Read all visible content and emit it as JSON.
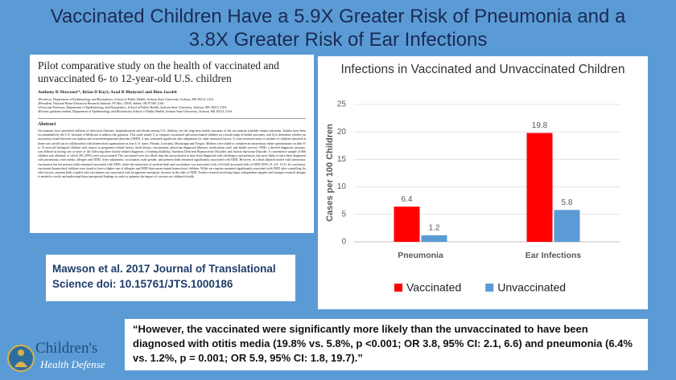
{
  "title": "Vaccinated Children Have a 5.9X Greater Risk of Pneumonia and a 3.8X Greater Risk of Ear Infections",
  "paper": {
    "title": "Pilot comparative study on the health of vaccinated and unvaccinated 6- to 12-year-old U.S. children",
    "authors": "Anthony R Mawson1*, Brian D Ray2, Azad R Bhuiyan3 and Binu Jacob4",
    "affiliations": [
      "1Professor, Department of Epidemiology and Biostatistics, School of Public Health, Jackson State University, Jackson, MS 39213, USA",
      "2President, National Home Education Research Institute, PO Box 13939, Salem, OR 97309, USA",
      "3Associate Professor, Department of Epidemiology and Biostatistics, School of Public Health, Jackson State University, Jackson, MS 39213, USA",
      "4Former graduate student, Department of Epidemiology and Biostatistics School of Public Health, Jackson State University, Jackson, MS 39213, USA"
    ],
    "abstract_heading": "Abstract",
    "abstract": "Vaccinations have prevented millions of infectious illnesses, hospitalizations and deaths among U.S. children, yet the long-term health outcomes of the vaccination schedule remain uncertain. Studies have been recommended by the U.S. Institute of Medicine to address this question. This study aimed 1) to compare vaccinated and unvaccinated children on a broad range of health outcomes, and 2) to determine whether an association found between vaccination and neurodevelopmental disorders (NDD), if any, remained significant after adjustment for other measured factors. A cross-sectional study of mothers of children educated at home was carried out in collaboration with homeschool organizations in four U.S. states: Florida, Louisiana, Mississippi and Oregon. Mothers were asked to complete an anonymous online questionnaire on their 6- to 12-year-old biological children with respect to pregnancy-related factors, birth history, vaccinations, physician-diagnosed illnesses, medications used, and health services. NDD, a derived diagnostic measure, was defined as having one or more of the following three closely-related diagnoses: a learning disability, Attention Deficient Hyperactivity Disorder, and Autism Spectrum Disorder. A convenience sample of 666 children was obtained, of which 261 (39%) were unvaccinated. The vaccinated were less likely than the unvaccinated to have been diagnosed with chickenpox and pertussis, but more likely to have been diagnosed with pneumonia, otitis media, allergies and NDD. After adjustment, vaccination, male gender, and preterm birth remained significantly associated with NDD. However, in a final adjusted model with interaction, vaccination but not preterm birth remained associated with NDD, while the interaction of preterm birth and vaccination was associated with a 6.6-fold increased odds of NDD (95% CI: 2.8, 15.5). In conclusion, vaccinated homeschool children were found to have a higher rate of allergies and NDD than unvaccinated homeschool children. While vaccination remained significantly associated with NDD after controlling for other factors, preterm birth coupled with vaccination was associated with an apparent synergistic increase in the odds of NDD. Further research involving larger, independent samples and stronger research designs is needed to verify and understand these unexpected findings in order to optimize the impact of vaccines on children's health."
  },
  "citation": "Mawson et al. 2017 Journal of Translational Science doi: 10.15761/JTS.1000186",
  "quote": "“However, the vaccinated were significantly more likely than the unvaccinated to have been diagnosed with otitis media (19.8% vs. 5.8%, p <0.001; OR 3.8, 95% CI: 2.1, 6.6) and pneumonia (6.4% vs. 1.2%, p = 0.001; OR 5.9, 95% CI: 1.8, 19.7).”",
  "logo": {
    "line1": "Children's",
    "line2": "Health Defense"
  },
  "chart_data": {
    "type": "bar",
    "title": "Infections in Vaccinated and Unvaccinated Children",
    "y_label": "Cases per 100 Children",
    "categories": [
      "Pneumonia",
      "Ear Infections"
    ],
    "series": [
      {
        "name": "Vaccinated",
        "color": "#ff0000",
        "values": [
          6.4,
          19.8
        ]
      },
      {
        "name": "Unvaccinated",
        "color": "#5b9bd5",
        "values": [
          1.2,
          5.8
        ]
      }
    ],
    "ylim": [
      0,
      25
    ],
    "yticks": [
      0,
      5,
      10,
      15,
      20,
      25
    ],
    "grid": true,
    "legend": "bottom"
  }
}
